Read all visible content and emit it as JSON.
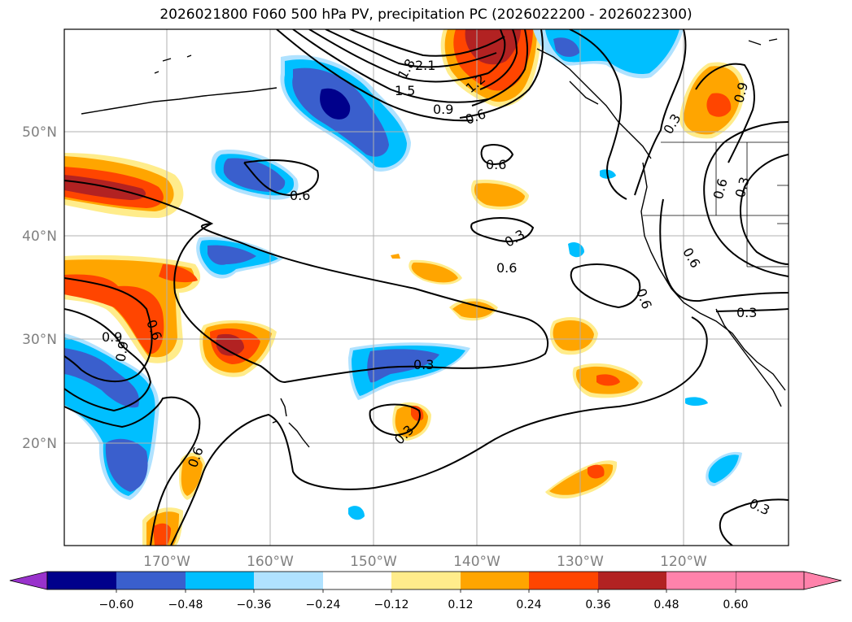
{
  "title": "2026021800 F060 500 hPa PV, precipitation PC (2026022200 - 2026022300)",
  "axes": {
    "lat_labels": [
      "50°N",
      "40°N",
      "30°N",
      "20°N"
    ],
    "lon_labels": [
      "170°W",
      "160°W",
      "150°W",
      "140°W",
      "130°W",
      "120°W"
    ]
  },
  "colorbar": {
    "ticks": [
      "−0.60",
      "−0.48",
      "−0.36",
      "−0.24",
      "−0.12",
      "0.12",
      "0.24",
      "0.36",
      "0.48",
      "0.60"
    ],
    "colors": [
      "#9932cc",
      "#00008b",
      "#3a5fcd",
      "#00bfff",
      "#b0e2ff",
      "#ffffff",
      "#ffec8b",
      "#ffa500",
      "#ff4500",
      "#b22222",
      "#ff82ab"
    ]
  },
  "contour_labels": [
    "2.1",
    "1.8",
    "1.5",
    "1.2",
    "0.9",
    "0.6",
    "0.6",
    "0.6",
    "0.3",
    "0.6",
    "0.9",
    "0.3",
    "0.3",
    "0.6",
    "0.6",
    "0.3",
    "0.6",
    "0.9",
    "0.3",
    "0.6",
    "0.3",
    "0.3",
    "0.9",
    "0.6"
  ]
}
